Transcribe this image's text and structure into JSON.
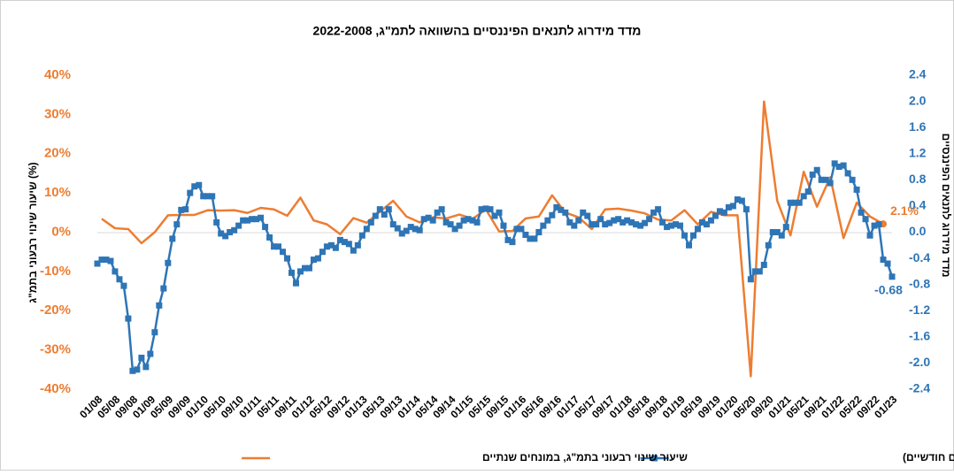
{
  "chart_data": {
    "type": "line",
    "title": "מדד מידרוג לתנאים הפיננסיים בהשוואה לתמ\"ג, 2022-2008",
    "y_label": "שיעור שינוי רבעוני בתמ\"ג (%)",
    "y2_label": "מדד מידרוג לתנאים הפיננסיים",
    "categories": [
      "01/08",
      null,
      null,
      null,
      "05/08",
      null,
      null,
      null,
      "09/08",
      null,
      null,
      null,
      "01/09",
      null,
      null,
      null,
      "05/09",
      null,
      null,
      null,
      "09/09",
      null,
      null,
      null,
      "01/10",
      null,
      null,
      null,
      "05/10",
      null,
      null,
      null,
      "09/10",
      null,
      null,
      null,
      "01/11",
      null,
      null,
      null,
      "05/11",
      null,
      null,
      null,
      "09/11",
      null,
      null,
      null,
      "01/12",
      null,
      null,
      null,
      "05/12",
      null,
      null,
      null,
      "09/12",
      null,
      null,
      null,
      "01/13",
      null,
      null,
      null,
      "05/13",
      null,
      null,
      null,
      "09/13",
      null,
      null,
      null,
      "01/14",
      null,
      null,
      null,
      "05/14",
      null,
      null,
      null,
      "09/14",
      null,
      null,
      null,
      "01/15",
      null,
      null,
      null,
      "05/15",
      null,
      null,
      null,
      "09/15",
      null,
      null,
      null,
      "01/16",
      null,
      null,
      null,
      "05/16",
      null,
      null,
      null,
      "09/16",
      null,
      null,
      null,
      "01/17",
      null,
      null,
      null,
      "05/17",
      null,
      null,
      null,
      "09/17",
      null,
      null,
      null,
      "01/18",
      null,
      null,
      null,
      "05/18",
      null,
      null,
      null,
      "09/18",
      null,
      null,
      null,
      "01/19",
      null,
      null,
      null,
      "05/19",
      null,
      null,
      null,
      "09/19",
      null,
      null,
      null,
      "01/20",
      null,
      null,
      null,
      "05/20",
      null,
      null,
      null,
      "09/20",
      null,
      null,
      null,
      "01/21",
      null,
      null,
      null,
      "05/21",
      null,
      null,
      null,
      "09/21",
      null,
      null,
      null,
      "01/22",
      null,
      null,
      null,
      "05/22",
      null,
      null,
      null,
      "09/22",
      null,
      null,
      null,
      "01/23"
    ],
    "series": [
      {
        "name": "שיעור שינוי רבעוני בתמ\"ג, במונחים שנתיים",
        "color": "#ed7d31",
        "axis": "y",
        "x": [
          "02/08",
          "05/08",
          "08/08",
          "11/08",
          "02/09",
          "05/09",
          "08/09",
          "11/09",
          "02/10",
          "05/10",
          "08/10",
          "11/10",
          "02/11",
          "05/11",
          "08/11",
          "11/11",
          "02/12",
          "05/12",
          "08/12",
          "11/12",
          "02/13",
          "05/13",
          "08/13",
          "11/13",
          "02/14",
          "05/14",
          "08/14",
          "11/14",
          "02/15",
          "05/15",
          "08/15",
          "11/15",
          "02/16",
          "05/16",
          "08/16",
          "11/16",
          "02/17",
          "05/17",
          "08/17",
          "11/17",
          "02/18",
          "05/18",
          "08/18",
          "11/18",
          "02/19",
          "05/19",
          "08/19",
          "11/19",
          "02/20",
          "05/20",
          "08/20",
          "11/20",
          "02/21",
          "05/21",
          "08/21",
          "11/21",
          "02/22",
          "05/22",
          "08/22",
          "11/22"
        ],
        "values": [
          3.4,
          1.0,
          0.8,
          -2.8,
          0.0,
          4.3,
          4.4,
          4.4,
          5.6,
          5.5,
          5.6,
          4.9,
          6.2,
          5.8,
          4.2,
          8.8,
          3.0,
          2.0,
          -0.5,
          3.6,
          2.4,
          5.2,
          8.0,
          4.0,
          2.5,
          3.8,
          3.5,
          4.5,
          3.4,
          5.8,
          0.2,
          0.3,
          3.5,
          4.0,
          9.4,
          5.0,
          3.8,
          0.8,
          5.8,
          6.0,
          5.5,
          4.8,
          3.2,
          3.0,
          5.6,
          2.0,
          5.2,
          4.3,
          4.3,
          -36.7,
          33.3,
          8.0,
          -0.8,
          15.4,
          6.5,
          14.0,
          -1.5,
          7.5,
          4.0,
          2.1
        ],
        "value_labels": [
          null,
          null,
          null,
          null,
          null,
          null,
          null,
          null,
          null,
          null,
          null,
          null,
          null,
          null,
          null,
          null,
          null,
          null,
          null,
          null,
          null,
          null,
          null,
          null,
          null,
          null,
          null,
          null,
          null,
          null,
          null,
          null,
          null,
          null,
          null,
          null,
          null,
          null,
          null,
          null,
          null,
          null,
          null,
          null,
          null,
          null,
          null,
          null,
          null,
          null,
          null,
          null,
          null,
          null,
          null,
          null,
          null,
          null,
          null,
          "2.1%"
        ]
      },
      {
        "name": "מדד מידרוג לתנאים הפיננסיים (נתונים חודשיים)",
        "color": "#2e75b6",
        "axis": "y2",
        "values": [
          -0.48,
          -0.42,
          -0.42,
          -0.44,
          -0.6,
          -0.72,
          -0.82,
          -1.32,
          -2.12,
          -2.1,
          -1.92,
          -2.06,
          -1.86,
          -1.53,
          -1.12,
          -0.86,
          -0.47,
          -0.1,
          0.12,
          0.34,
          0.35,
          0.6,
          0.7,
          0.72,
          0.55,
          0.55,
          0.55,
          0.15,
          -0.02,
          -0.06,
          0.0,
          0.03,
          0.1,
          0.18,
          0.18,
          0.2,
          0.2,
          0.22,
          0.08,
          -0.08,
          -0.22,
          -0.22,
          -0.3,
          -0.4,
          -0.62,
          -0.78,
          -0.6,
          -0.55,
          -0.55,
          -0.42,
          -0.4,
          -0.3,
          -0.22,
          -0.2,
          -0.24,
          -0.12,
          -0.15,
          -0.18,
          -0.28,
          -0.2,
          -0.05,
          0.05,
          0.15,
          0.25,
          0.35,
          0.27,
          0.35,
          0.12,
          0.06,
          -0.02,
          0.02,
          0.08,
          0.05,
          0.03,
          0.2,
          0.22,
          0.18,
          0.3,
          0.35,
          0.15,
          0.12,
          0.05,
          0.1,
          0.18,
          0.2,
          0.18,
          0.15,
          0.35,
          0.36,
          0.35,
          0.25,
          0.3,
          0.1,
          -0.12,
          -0.15,
          0.05,
          0.05,
          -0.04,
          -0.1,
          -0.1,
          0.0,
          0.1,
          0.18,
          0.26,
          0.38,
          0.34,
          0.3,
          0.15,
          0.1,
          0.18,
          0.3,
          0.25,
          0.12,
          0.12,
          0.2,
          0.12,
          0.14,
          0.18,
          0.2,
          0.15,
          0.18,
          0.15,
          0.12,
          0.1,
          0.14,
          0.2,
          0.3,
          0.35,
          0.15,
          0.08,
          0.1,
          0.12,
          0.1,
          -0.05,
          -0.2,
          -0.05,
          0.05,
          0.15,
          0.12,
          0.18,
          0.25,
          0.32,
          0.3,
          0.38,
          0.4,
          0.5,
          0.48,
          0.35,
          -0.72,
          -0.6,
          -0.6,
          -0.5,
          -0.2,
          0.0,
          0.0,
          -0.05,
          0.08,
          0.45,
          0.45,
          0.45,
          0.55,
          0.62,
          0.88,
          0.95,
          0.8,
          0.8,
          0.75,
          1.05,
          1.0,
          1.02,
          0.9,
          0.8,
          0.65,
          0.3,
          0.2,
          -0.05,
          0.1,
          0.12,
          -0.42,
          -0.48,
          -0.68
        ],
        "value_labels": [
          null,
          null,
          null,
          null,
          null,
          null,
          null,
          null,
          null,
          null,
          null,
          null,
          null,
          null,
          null,
          null,
          null,
          null,
          null,
          null,
          null,
          null,
          null,
          null,
          null,
          null,
          null,
          null,
          null,
          null,
          null,
          null,
          null,
          null,
          null,
          null,
          null,
          null,
          null,
          null,
          null,
          null,
          null,
          null,
          null,
          null,
          null,
          null,
          null,
          null,
          null,
          null,
          null,
          null,
          null,
          null,
          null,
          null,
          null,
          null,
          null,
          null,
          null,
          null,
          null,
          null,
          null,
          null,
          null,
          null,
          null,
          null,
          null,
          null,
          null,
          null,
          null,
          null,
          null,
          null,
          null,
          null,
          null,
          null,
          null,
          null,
          null,
          null,
          null,
          null,
          null,
          null,
          null,
          null,
          null,
          null,
          null,
          null,
          null,
          null,
          null,
          null,
          null,
          null,
          null,
          null,
          null,
          null,
          null,
          null,
          null,
          null,
          null,
          null,
          null,
          null,
          null,
          null,
          null,
          null,
          null,
          null,
          null,
          null,
          null,
          null,
          null,
          null,
          null,
          null,
          null,
          null,
          null,
          null,
          null,
          null,
          null,
          null,
          null,
          null,
          null,
          null,
          null,
          null,
          null,
          null,
          null,
          null,
          null,
          null,
          null,
          null,
          null,
          null,
          null,
          null,
          null,
          null,
          null,
          null,
          null,
          null,
          null,
          null,
          null,
          null,
          null,
          null,
          null,
          null,
          null,
          null,
          null,
          null,
          null,
          null,
          null,
          null,
          null,
          null,
          "-0.68"
        ]
      }
    ],
    "ylim": [
      -40,
      40
    ],
    "yticks": [
      {
        "value": -40,
        "label": "-40%"
      },
      {
        "value": -30,
        "label": "-30%"
      },
      {
        "value": -20,
        "label": "-20%"
      },
      {
        "value": -10,
        "label": "-10%"
      },
      {
        "value": 0,
        "label": "0%"
      },
      {
        "value": 10,
        "label": "10%"
      },
      {
        "value": 20,
        "label": "20%"
      },
      {
        "value": 30,
        "label": "30%"
      },
      {
        "value": 40,
        "label": "40%"
      }
    ],
    "y2lim": [
      -2.4,
      2.4
    ],
    "y2ticks": [
      -2.4,
      {
        "value": -2,
        "label": "-2.0"
      },
      -1.6,
      -1.2,
      -0.8,
      -0.4,
      {
        "value": 0,
        "label": "0.0"
      },
      0.4,
      0.8,
      1.2,
      1.6,
      {
        "value": 2,
        "label": "2.0"
      },
      2.4
    ],
    "grid": false,
    "legend": "bottom"
  }
}
